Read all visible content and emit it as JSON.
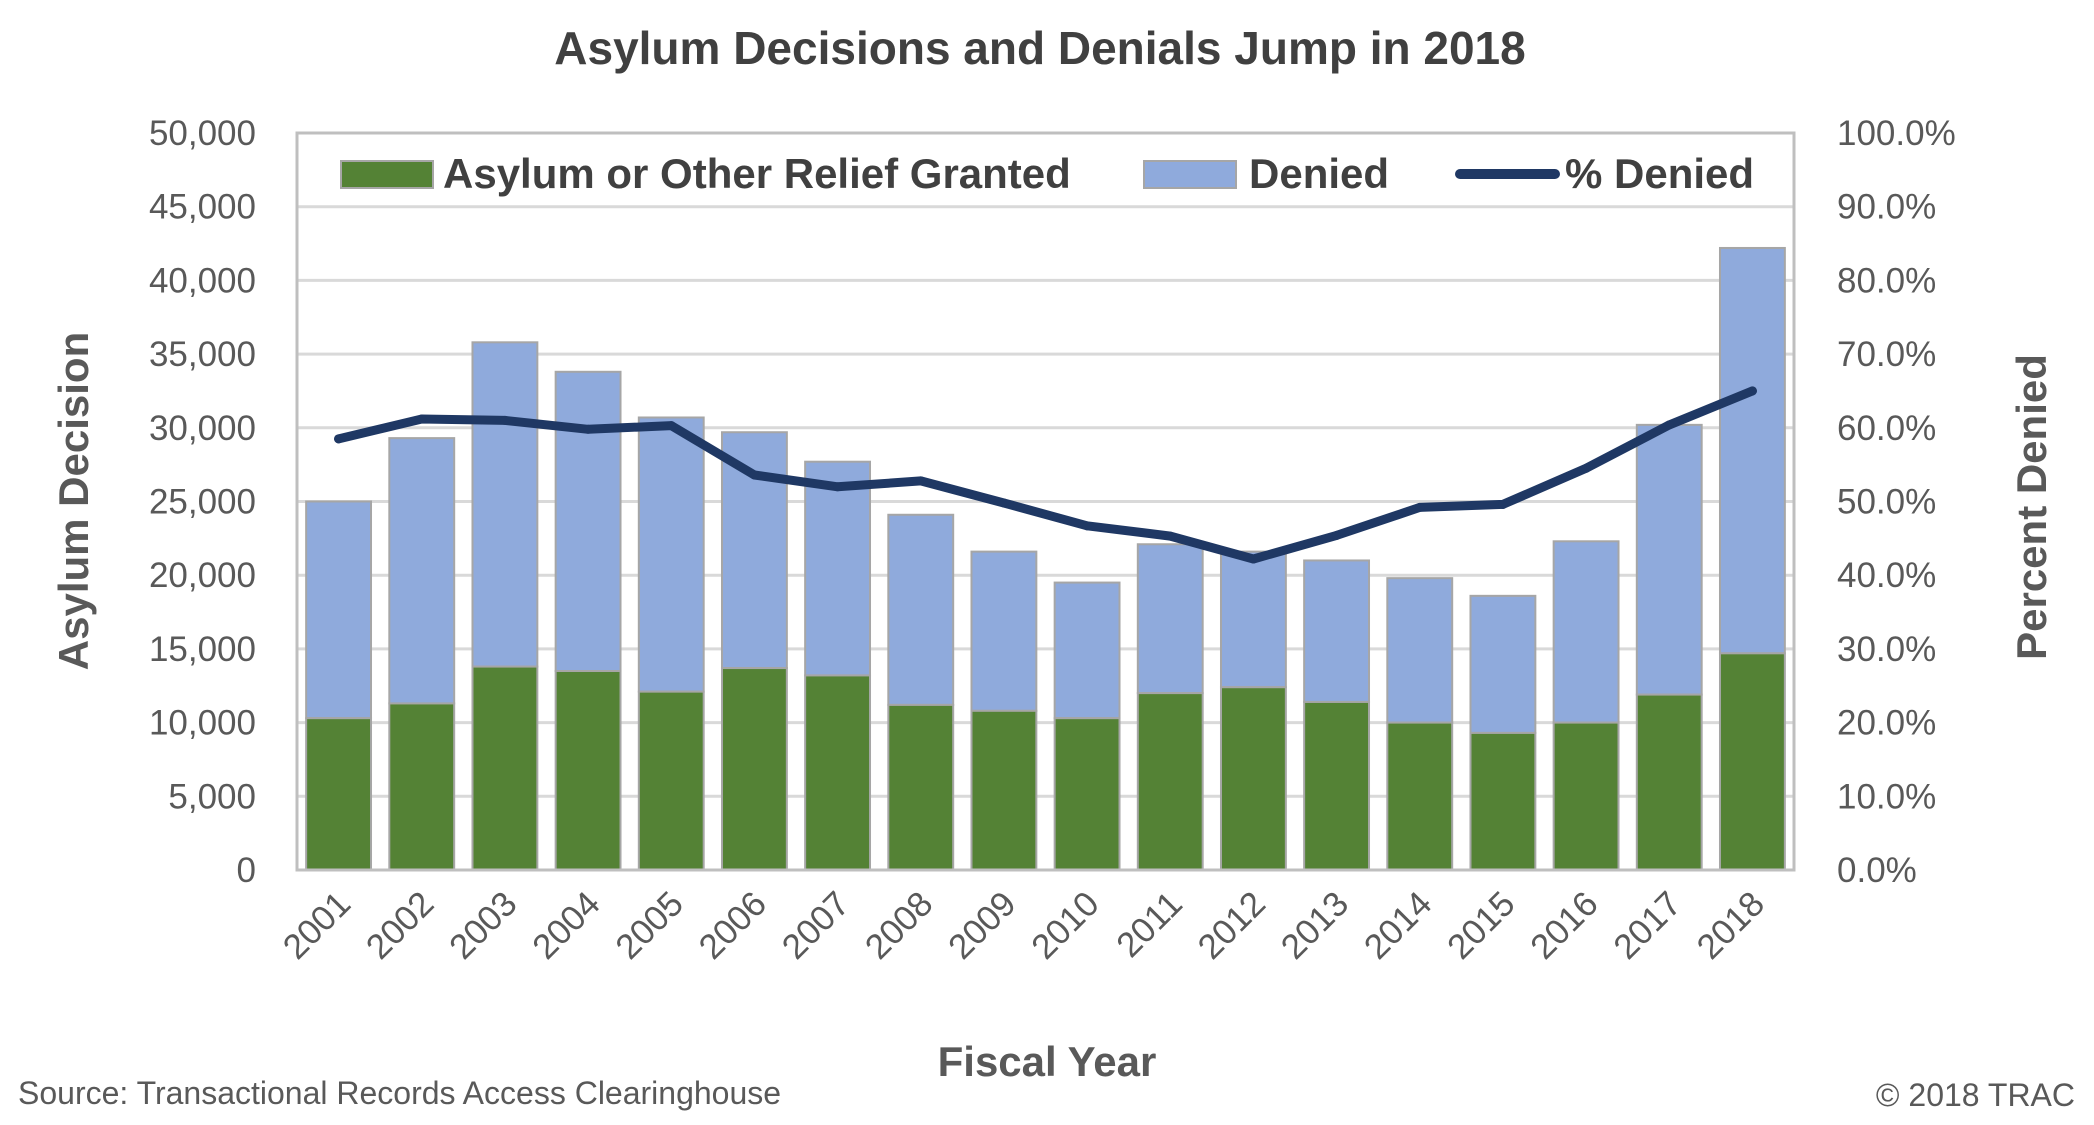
{
  "chart_data": {
    "type": "bar",
    "title": "Asylum Decisions and Denials Jump in 2018",
    "xlabel": "Fiscal Year",
    "ylabel": "Asylum Decision",
    "y2label": "Percent Denied",
    "ylim": [
      0,
      50000
    ],
    "y2lim": [
      0,
      100
    ],
    "y_ticks": [
      "0",
      "5,000",
      "10,000",
      "15,000",
      "20,000",
      "25,000",
      "30,000",
      "35,000",
      "40,000",
      "45,000",
      "50,000"
    ],
    "y2_ticks": [
      "0.0%",
      "10.0%",
      "20.0%",
      "30.0%",
      "40.0%",
      "50.0%",
      "60.0%",
      "70.0%",
      "80.0%",
      "90.0%",
      "100.0%"
    ],
    "categories": [
      "2001",
      "2002",
      "2003",
      "2004",
      "2005",
      "2006",
      "2007",
      "2008",
      "2009",
      "2010",
      "2011",
      "2012",
      "2013",
      "2014",
      "2015",
      "2016",
      "2017",
      "2018"
    ],
    "series": [
      {
        "name": "Asylum or Other Relief Granted",
        "kind": "stacked-bar",
        "color": "#548235",
        "values": [
          10300,
          11300,
          13800,
          13500,
          12100,
          13700,
          13200,
          11200,
          10800,
          10300,
          12000,
          12400,
          11400,
          10000,
          9300,
          10000,
          11900,
          14700
        ]
      },
      {
        "name": "Denied",
        "kind": "stacked-bar",
        "color": "#8FAADC",
        "values": [
          14700,
          18000,
          22000,
          20300,
          18600,
          16000,
          14500,
          12900,
          10800,
          9200,
          10100,
          9200,
          9600,
          9800,
          9300,
          12300,
          18300,
          27500
        ]
      },
      {
        "name": "% Denied",
        "kind": "line",
        "axis": "right",
        "color": "#1F3864",
        "values": [
          58.5,
          61.2,
          61.0,
          59.8,
          60.3,
          53.6,
          52.0,
          52.8,
          49.8,
          46.7,
          45.3,
          42.2,
          45.4,
          49.2,
          49.6,
          54.5,
          60.4,
          65.0
        ]
      }
    ],
    "grid": true,
    "legend_position": "top-inside"
  },
  "footer": {
    "source": "Source: Transactional Records Access Clearinghouse",
    "copyright": "© 2018 TRAC"
  }
}
